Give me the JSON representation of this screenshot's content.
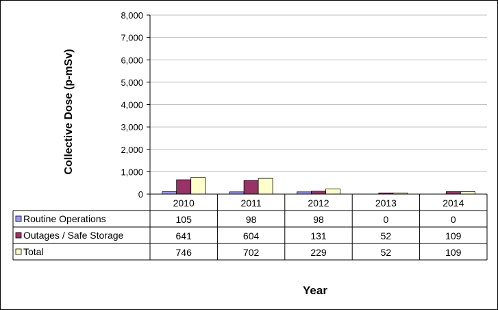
{
  "chart_data": {
    "type": "bar",
    "title": "",
    "xlabel": "Year",
    "ylabel": "Collective Dose (p-mSv)",
    "categories": [
      "2010",
      "2011",
      "2012",
      "2013",
      "2014"
    ],
    "ylim": [
      0,
      8000
    ],
    "yticks": [
      "0",
      "1,000",
      "2,000",
      "3,000",
      "4,000",
      "5,000",
      "6,000",
      "7,000",
      "8,000"
    ],
    "grid": true,
    "legend_placement": "data table, left",
    "series": [
      {
        "name": "Routine Operations",
        "values": [
          105,
          98,
          98,
          0,
          0
        ],
        "color": "#9999FF"
      },
      {
        "name": "Outages / Safe Storage",
        "values": [
          641,
          604,
          131,
          52,
          109
        ],
        "color": "#993366"
      },
      {
        "name": "Total",
        "values": [
          746,
          702,
          229,
          52,
          109
        ],
        "color": "#FFFFCC"
      }
    ],
    "table_labels": [
      [
        "105",
        "98",
        "98",
        "0",
        "0"
      ],
      [
        "641",
        "604",
        "131",
        "52",
        "109"
      ],
      [
        "746",
        "702",
        "229",
        "52",
        "109"
      ]
    ]
  }
}
